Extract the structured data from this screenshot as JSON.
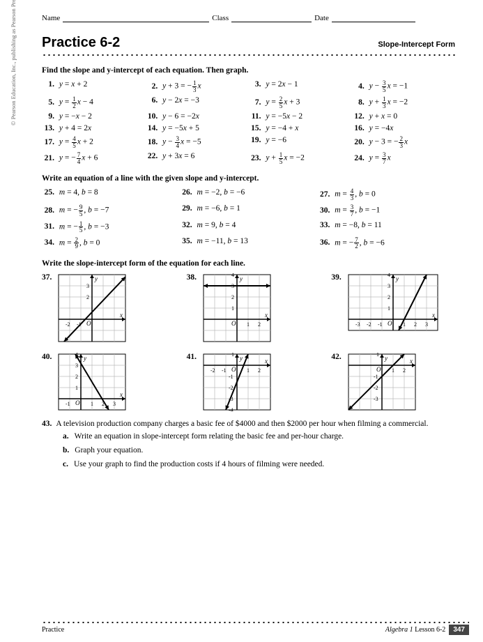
{
  "header": {
    "name": "Name",
    "class": "Class",
    "date": "Date"
  },
  "title": "Practice 6-2",
  "subtitle": "Slope-Intercept Form",
  "instr1": "Find the slope and y-intercept of each equation. Then graph.",
  "sec1": [
    {
      "n": "1.",
      "eq": "y = x + 2"
    },
    {
      "n": "2.",
      "eq": "y + 3 = −",
      "f": [
        "1",
        "3"
      ],
      "eqs": "x"
    },
    {
      "n": "3.",
      "eq": "y = 2x − 1"
    },
    {
      "n": "4.",
      "eq": "y − ",
      "f": [
        "3",
        "5"
      ],
      "eqs": "x = −1"
    },
    {
      "n": "5.",
      "eq": "y = ",
      "f": [
        "1",
        "2"
      ],
      "eqs": "x − 4"
    },
    {
      "n": "6.",
      "eq": "y − 2x = −3"
    },
    {
      "n": "7.",
      "eq": "y = ",
      "f": [
        "2",
        "5"
      ],
      "eqs": "x + 3"
    },
    {
      "n": "8.",
      "eq": "y + ",
      "f": [
        "1",
        "3"
      ],
      "eqs": "x = −2"
    },
    {
      "n": "9.",
      "eq": "y = −x − 2"
    },
    {
      "n": "10.",
      "eq": "y − 6 = −2x"
    },
    {
      "n": "11.",
      "eq": "y = −5x − 2"
    },
    {
      "n": "12.",
      "eq": "y + x = 0"
    },
    {
      "n": "13.",
      "eq": "y + 4 = 2x"
    },
    {
      "n": "14.",
      "eq": "y = −5x + 5"
    },
    {
      "n": "15.",
      "eq": "y = −4 + x"
    },
    {
      "n": "16.",
      "eq": "y = −4x"
    },
    {
      "n": "17.",
      "eq": "y = ",
      "f": [
        "4",
        "5"
      ],
      "eqs": "x + 2"
    },
    {
      "n": "18.",
      "eq": "y − ",
      "f": [
        "3",
        "4"
      ],
      "eqs": "x = −5"
    },
    {
      "n": "19.",
      "eq": "y = −6"
    },
    {
      "n": "20.",
      "eq": "y − 3 = −",
      "f": [
        "2",
        "3"
      ],
      "eqs": "x"
    },
    {
      "n": "21.",
      "eq": "y = −",
      "f": [
        "7",
        "4"
      ],
      "eqs": "x + 6"
    },
    {
      "n": "22.",
      "eq": "y + 3x = 6"
    },
    {
      "n": "23.",
      "eq": "y + ",
      "f": [
        "1",
        "5"
      ],
      "eqs": "x = −2"
    },
    {
      "n": "24.",
      "eq": "y = ",
      "f": [
        "3",
        "7"
      ],
      "eqs": "x"
    }
  ],
  "instr2": "Write an equation of a line with the given slope and y-intercept.",
  "sec2": [
    {
      "n": "25.",
      "eq": "m = 4, b = 8"
    },
    {
      "n": "26.",
      "eq": "m = −2, b = −6"
    },
    {
      "n": "27.",
      "eq": "m = ",
      "f": [
        "4",
        "3"
      ],
      "eqs": ", b = 0"
    },
    {
      "n": "28.",
      "eq": "m = −",
      "f": [
        "9",
        "5"
      ],
      "eqs": ", b = −7"
    },
    {
      "n": "29.",
      "eq": "m = −6, b = 1"
    },
    {
      "n": "30.",
      "eq": "m = ",
      "f": [
        "3",
        "7"
      ],
      "eqs": ", b = −1"
    },
    {
      "n": "31.",
      "eq": "m = −",
      "f": [
        "1",
        "5"
      ],
      "eqs": ", b = −3"
    },
    {
      "n": "32.",
      "eq": "m = 9, b = 4"
    },
    {
      "n": "33.",
      "eq": "m = −8, b = 11"
    },
    {
      "n": "34.",
      "eq": "m = ",
      "f": [
        "2",
        "9"
      ],
      "eqs": ", b = 0"
    },
    {
      "n": "35.",
      "eq": "m = −11, b = 13"
    },
    {
      "n": "36.",
      "eq": "m = −",
      "f": [
        "7",
        "2"
      ],
      "eqs": ", b = −6"
    }
  ],
  "instr3": "Write the slope-intercept form of the equation for each line.",
  "graphs": [
    "37.",
    "38.",
    "39.",
    "40.",
    "41.",
    "42."
  ],
  "q43": {
    "n": "43.",
    "text": "A television production company charges a basic fee of $4000 and then $2000 per hour when filming a commercial.",
    "a": {
      "n": "a.",
      "t": "Write an equation in slope-intercept form relating the basic fee and per-hour charge."
    },
    "b": {
      "n": "b.",
      "t": "Graph your equation."
    },
    "c": {
      "n": "c.",
      "t": "Use your graph to find the production costs if 4 hours of filming were needed."
    }
  },
  "footer": {
    "left": "Practice",
    "right_i": "Algebra 1",
    "right": " Lesson 6-2",
    "page": "347"
  },
  "copyright": "© Pearson Education, Inc., publishing as Pearson Prentice Hall.                                                                              All rights reserved.",
  "gstyle": {
    "w": 110,
    "h": 95,
    "cell": 16,
    "stroke": "#000",
    "grid": "#bbb",
    "axis_w": 1.5,
    "line_w": 2
  },
  "gdata": {
    "37": {
      "xr": [
        -3,
        3
      ],
      "yr": [
        -2,
        4
      ],
      "line": [
        [
          -2.5,
          -2
        ],
        [
          3,
          3.8
        ]
      ],
      "xlbl": [
        -2,
        -1
      ],
      "ylbl": [
        3,
        2
      ],
      "ox": 0,
      "oy": 0
    },
    "38": {
      "xr": [
        -3,
        3
      ],
      "yr": [
        -2,
        4
      ],
      "line": [
        [
          -3,
          3
        ],
        [
          3,
          3
        ]
      ],
      "xlbl": [
        1,
        2
      ],
      "ylbl": [
        4,
        3,
        2,
        1
      ],
      "ox": 0,
      "oy": 0
    },
    "39": {
      "xr": [
        -4,
        4
      ],
      "yr": [
        -1,
        4
      ],
      "line": [
        [
          0.5,
          -1
        ],
        [
          3,
          4
        ]
      ],
      "xlbl": [
        -3,
        -2,
        -1,
        1,
        2,
        3
      ],
      "ylbl": [
        4,
        3,
        2,
        1
      ],
      "ox": 0,
      "oy": 0
    },
    "40": {
      "xr": [
        -2,
        4
      ],
      "yr": [
        -1,
        4
      ],
      "line": [
        [
          -0.5,
          4
        ],
        [
          2.5,
          -1
        ]
      ],
      "xlbl": [
        -1,
        1,
        2,
        3
      ],
      "ylbl": [
        4,
        3,
        2,
        1
      ],
      "ox": 0,
      "oy": 0
    },
    "41": {
      "xr": [
        -3,
        3
      ],
      "yr": [
        -4,
        1
      ],
      "line": [
        [
          -1,
          -4
        ],
        [
          1,
          1
        ]
      ],
      "xlbl": [
        -2,
        -1,
        1,
        2
      ],
      "ylbl": [
        1,
        -1,
        -2,
        -3,
        -4
      ],
      "ox": 0,
      "oy": 0
    },
    "42": {
      "xr": [
        -3,
        3
      ],
      "yr": [
        -4,
        1
      ],
      "line": [
        [
          -3,
          -4
        ],
        [
          2,
          1
        ]
      ],
      "xlbl": [
        1,
        2
      ],
      "ylbl": [
        1,
        -1,
        -2,
        -3
      ],
      "ox": 0,
      "oy": 0
    }
  }
}
